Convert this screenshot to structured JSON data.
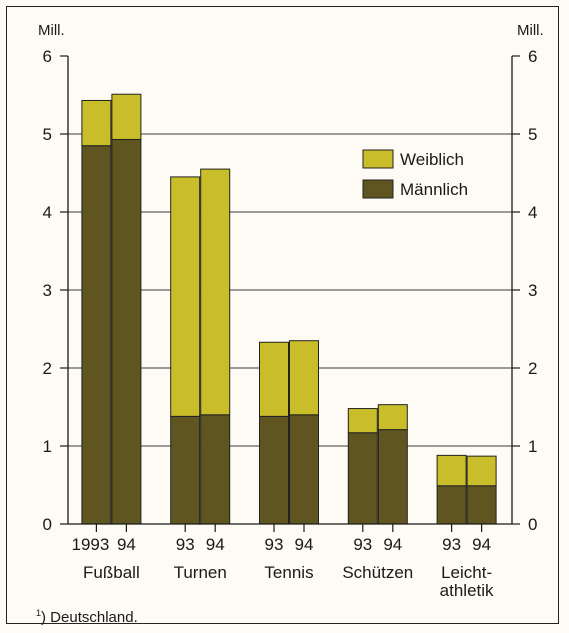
{
  "chart_data": {
    "type": "bar",
    "stacked": true,
    "unit_label_left": "Mill.",
    "unit_label_right": "Mill.",
    "ylim": [
      0,
      6
    ],
    "yticks": [
      "0",
      "1",
      "2",
      "3",
      "4",
      "5",
      "6"
    ],
    "grid": true,
    "legend_position": "top-right",
    "groups": [
      {
        "name": "Fußball",
        "bars": [
          {
            "year": "1993",
            "male": 4.85,
            "female": 0.58
          },
          {
            "year": "94",
            "male": 4.93,
            "female": 0.58
          }
        ]
      },
      {
        "name": "Turnen",
        "bars": [
          {
            "year": "93",
            "male": 1.38,
            "female": 3.07
          },
          {
            "year": "94",
            "male": 1.4,
            "female": 3.15
          }
        ]
      },
      {
        "name": "Tennis",
        "bars": [
          {
            "year": "93",
            "male": 1.38,
            "female": 0.95
          },
          {
            "year": "94",
            "male": 1.4,
            "female": 0.95
          }
        ]
      },
      {
        "name": "Schützen",
        "bars": [
          {
            "year": "93",
            "male": 1.17,
            "female": 0.31
          },
          {
            "year": "94",
            "male": 1.21,
            "female": 0.32
          }
        ]
      },
      {
        "name_lines": [
          "Leicht-",
          "athletik"
        ],
        "bars": [
          {
            "year": "93",
            "male": 0.49,
            "female": 0.39
          },
          {
            "year": "94",
            "male": 0.49,
            "female": 0.38
          }
        ]
      }
    ],
    "series": [
      {
        "name": "Weiblich",
        "key": "female",
        "color": "#c9bd2a"
      },
      {
        "name": "Männlich",
        "key": "male",
        "color": "#5e5520"
      }
    ]
  },
  "footnote": {
    "mark": "1",
    "text": ") Deutschland."
  }
}
